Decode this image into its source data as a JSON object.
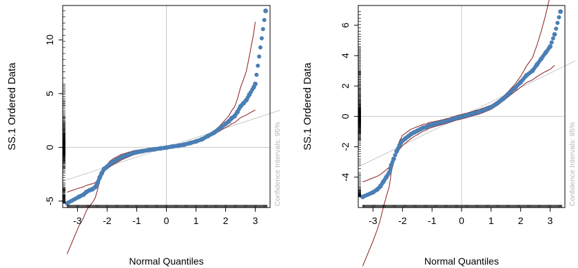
{
  "chart_data": [
    {
      "type": "scatter",
      "subtype": "qq-plot",
      "xlabel": "Normal Quantiles",
      "ylabel": "SS.1 Ordered Data",
      "side_label": "Confidence Intervals: 95%",
      "xlim": [
        -3.5,
        3.5
      ],
      "ylim": [
        -5.6,
        13.2
      ],
      "x_ticks": [
        -3,
        -2,
        -1,
        0,
        1,
        2,
        3
      ],
      "y_ticks": [
        -5,
        0,
        5,
        10
      ],
      "grid": "zero-lines",
      "reference_line": {
        "slope": 0.9,
        "intercept": 0.0
      },
      "colors": {
        "points": "#4a7fb4",
        "band": "#8b1a1a",
        "reference": "#c8c8c8",
        "zero_lines": "#c8c8c8"
      },
      "series": [
        {
          "x": [
            -3.35,
            -2.95,
            -2.8,
            -2.7,
            -2.6,
            -2.5,
            -2.4,
            -2.32,
            -2.25,
            -2.18,
            -2.1,
            -2.0,
            -1.9,
            -1.8,
            -1.7,
            -1.6,
            -1.5,
            -1.4,
            -1.3,
            -1.2,
            -1.1,
            -1.0,
            -0.9,
            -0.8,
            -0.6,
            -0.4,
            -0.2,
            0.0,
            0.2,
            0.4,
            0.6,
            0.8,
            1.0,
            1.2,
            1.4,
            1.6,
            1.8,
            2.0,
            2.1,
            2.2,
            2.3,
            2.4,
            2.5,
            2.6,
            2.7,
            2.8,
            2.95,
            3.0,
            3.35
          ],
          "y": [
            -5.2,
            -4.6,
            -4.4,
            -4.15,
            -4.0,
            -3.9,
            -3.7,
            -3.3,
            -2.8,
            -2.4,
            -2.0,
            -1.8,
            -1.55,
            -1.35,
            -1.2,
            -1.05,
            -0.9,
            -0.8,
            -0.7,
            -0.6,
            -0.5,
            -0.45,
            -0.4,
            -0.35,
            -0.25,
            -0.18,
            -0.1,
            -0.02,
            0.08,
            0.15,
            0.25,
            0.4,
            0.55,
            0.75,
            1.05,
            1.35,
            1.75,
            2.2,
            2.4,
            2.7,
            2.9,
            3.3,
            3.8,
            4.1,
            4.4,
            4.9,
            5.6,
            5.9,
            12.7
          ]
        }
      ]
    },
    {
      "type": "scatter",
      "subtype": "qq-plot",
      "xlabel": "Normal Quantiles",
      "ylabel": "SS.1 Ordered Data",
      "side_label": "Confidence Intervals: 95%",
      "xlim": [
        -3.5,
        3.5
      ],
      "ylim": [
        -6.0,
        7.3
      ],
      "x_ticks": [
        -3,
        -2,
        -1,
        0,
        1,
        2,
        3
      ],
      "y_ticks": [
        -4,
        -2,
        0,
        2,
        4,
        6
      ],
      "grid": "zero-lines",
      "reference_line": {
        "slope": 0.95,
        "intercept": 0.0
      },
      "colors": {
        "points": "#4a7fb4",
        "band": "#8b1a1a",
        "reference": "#c8c8c8",
        "zero_lines": "#c8c8c8"
      },
      "series": [
        {
          "x": [
            -3.35,
            -3.0,
            -2.85,
            -2.75,
            -2.65,
            -2.55,
            -2.45,
            -2.38,
            -2.3,
            -2.2,
            -2.1,
            -2.0,
            -1.9,
            -1.8,
            -1.7,
            -1.6,
            -1.5,
            -1.4,
            -1.3,
            -1.2,
            -1.1,
            -1.0,
            -0.9,
            -0.8,
            -0.6,
            -0.4,
            -0.2,
            0.0,
            0.2,
            0.4,
            0.6,
            0.8,
            1.0,
            1.2,
            1.4,
            1.6,
            1.8,
            2.0,
            2.2,
            2.4,
            2.55,
            2.7,
            2.85,
            3.0,
            3.15,
            3.35
          ],
          "y": [
            -5.3,
            -5.0,
            -4.8,
            -4.6,
            -4.3,
            -4.0,
            -3.7,
            -3.2,
            -2.8,
            -2.3,
            -1.9,
            -1.6,
            -1.45,
            -1.3,
            -1.15,
            -1.05,
            -0.95,
            -0.85,
            -0.75,
            -0.7,
            -0.6,
            -0.55,
            -0.5,
            -0.45,
            -0.35,
            -0.25,
            -0.12,
            -0.02,
            0.08,
            0.2,
            0.3,
            0.45,
            0.6,
            0.85,
            1.15,
            1.5,
            1.85,
            2.25,
            2.7,
            3.0,
            3.4,
            3.8,
            4.2,
            4.6,
            5.4,
            6.9
          ]
        }
      ]
    }
  ]
}
